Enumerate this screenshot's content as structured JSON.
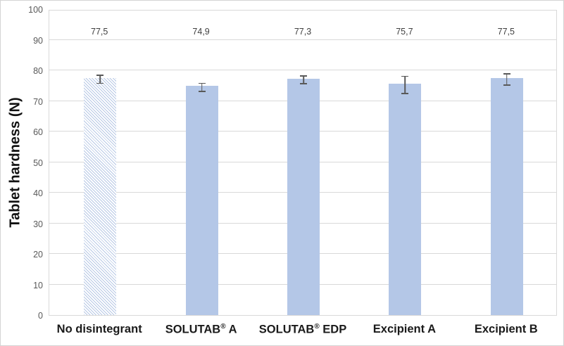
{
  "chart_data": {
    "type": "bar",
    "title": "",
    "xlabel": "",
    "ylabel": "Tablet hardness (N)",
    "ylim": [
      0,
      100
    ],
    "ytick_step": 10,
    "ytick_labels": [
      "0",
      "10",
      "20",
      "30",
      "40",
      "50",
      "60",
      "70",
      "80",
      "90",
      "100"
    ],
    "grid": true,
    "legend_position": "none",
    "decimal_separator": ",",
    "categories": [
      "No disintegrant",
      "SOLUTAB® A",
      "SOLUTAB® EDP",
      "Excipient A",
      "Excipient B"
    ],
    "values": [
      77.5,
      74.9,
      77.3,
      75.7,
      77.5
    ],
    "value_labels": [
      "77,5",
      "74,9",
      "77,3",
      "75,7",
      "77,5"
    ],
    "error_bars": [
      1.5,
      1.5,
      1.5,
      3.0,
      2.0
    ],
    "bar_styles": [
      "hatched",
      "solid",
      "solid",
      "solid",
      "solid"
    ]
  },
  "colors": {
    "bar_fill": "#b4c7e7",
    "hatch_line": "#b7c8e5",
    "gridline": "#d9d9d9",
    "plot_border": "#d9d9d9",
    "chart_border": "#d4d4d4",
    "error_bar": "#595959",
    "tick_label": "#595959",
    "data_label": "#404040",
    "category_label": "#1a1a1a",
    "background": "#ffffff"
  }
}
